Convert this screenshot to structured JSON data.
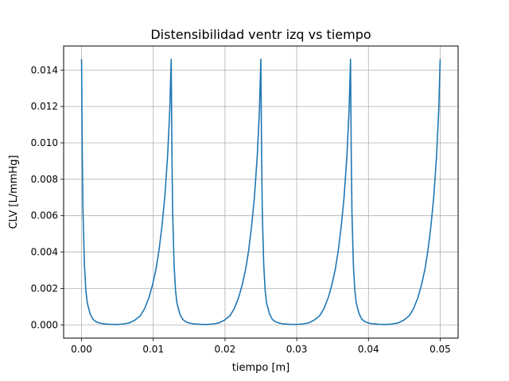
{
  "chart_data": {
    "type": "line",
    "title": "Distensibilidad ventr izq vs tiempo",
    "xlabel": "tiempo [m]",
    "ylabel": "CLV [L/mmHg]",
    "xlim": [
      -0.0025,
      0.0525
    ],
    "ylim": [
      -0.00073,
      0.01532
    ],
    "grid": true,
    "xticks": [
      0.0,
      0.01,
      0.02,
      0.03,
      0.04,
      0.05
    ],
    "xtick_labels": [
      "0.00",
      "0.01",
      "0.02",
      "0.03",
      "0.04",
      "0.05"
    ],
    "yticks": [
      0.0,
      0.002,
      0.004,
      0.006,
      0.008,
      0.01,
      0.012,
      0.014
    ],
    "ytick_labels": [
      "0.000",
      "0.002",
      "0.004",
      "0.006",
      "0.008",
      "0.010",
      "0.012",
      "0.014"
    ],
    "series": [
      {
        "color": "#1f77b4",
        "x": [
          0.0,
          0.0001,
          0.0002,
          0.0004,
          0.0006,
          0.0008,
          0.0012,
          0.0016,
          0.002,
          0.0025,
          0.003,
          0.004,
          0.005,
          0.0058,
          0.0066,
          0.0074,
          0.0082,
          0.0088,
          0.0094,
          0.0099,
          0.0104,
          0.0108,
          0.0112,
          0.0116,
          0.012,
          0.0123,
          0.0125,
          0.0126,
          0.0127,
          0.0129,
          0.0131,
          0.0133,
          0.0137,
          0.0141,
          0.0145,
          0.015,
          0.0155,
          0.0165,
          0.0175,
          0.0183,
          0.0191,
          0.0199,
          0.0207,
          0.0213,
          0.0219,
          0.0224,
          0.0229,
          0.0233,
          0.0237,
          0.0241,
          0.0245,
          0.0248,
          0.025,
          0.0251,
          0.0252,
          0.0254,
          0.0256,
          0.0258,
          0.0262,
          0.0266,
          0.027,
          0.0275,
          0.028,
          0.029,
          0.03,
          0.0308,
          0.0316,
          0.0324,
          0.0332,
          0.0338,
          0.0344,
          0.0349,
          0.0354,
          0.0358,
          0.0362,
          0.0366,
          0.037,
          0.0373,
          0.0375,
          0.0376,
          0.0377,
          0.0379,
          0.0381,
          0.0383,
          0.0387,
          0.0391,
          0.0395,
          0.04,
          0.0405,
          0.0415,
          0.0425,
          0.0433,
          0.0441,
          0.0449,
          0.0457,
          0.0463,
          0.0469,
          0.0474,
          0.0479,
          0.0483,
          0.0487,
          0.0491,
          0.0495,
          0.0498,
          0.05
        ],
        "y": [
          0.0146,
          0.0095,
          0.0062,
          0.0033,
          0.0019,
          0.0012,
          0.0006,
          0.0003,
          0.00018,
          0.0001,
          6e-05,
          3e-05,
          2e-05,
          5e-05,
          0.0001,
          0.00025,
          0.0005,
          0.0009,
          0.0015,
          0.0022,
          0.0031,
          0.0041,
          0.0054,
          0.007,
          0.0093,
          0.0118,
          0.0146,
          0.0095,
          0.0062,
          0.0033,
          0.0019,
          0.0012,
          0.0006,
          0.0003,
          0.00018,
          0.0001,
          6e-05,
          3e-05,
          2e-05,
          5e-05,
          0.0001,
          0.00025,
          0.0005,
          0.0009,
          0.0015,
          0.0022,
          0.0031,
          0.0041,
          0.0054,
          0.007,
          0.0093,
          0.0118,
          0.0146,
          0.0095,
          0.0062,
          0.0033,
          0.0019,
          0.0012,
          0.0006,
          0.0003,
          0.00018,
          0.0001,
          6e-05,
          3e-05,
          2e-05,
          5e-05,
          0.0001,
          0.00025,
          0.0005,
          0.0009,
          0.0015,
          0.0022,
          0.0031,
          0.0041,
          0.0054,
          0.007,
          0.0093,
          0.0118,
          0.0146,
          0.0095,
          0.0062,
          0.0033,
          0.0019,
          0.0012,
          0.0006,
          0.0003,
          0.00018,
          0.0001,
          6e-05,
          3e-05,
          2e-05,
          5e-05,
          0.0001,
          0.00025,
          0.0005,
          0.0009,
          0.0015,
          0.0022,
          0.0031,
          0.0041,
          0.0054,
          0.007,
          0.0093,
          0.0118,
          0.0146
        ]
      }
    ]
  }
}
